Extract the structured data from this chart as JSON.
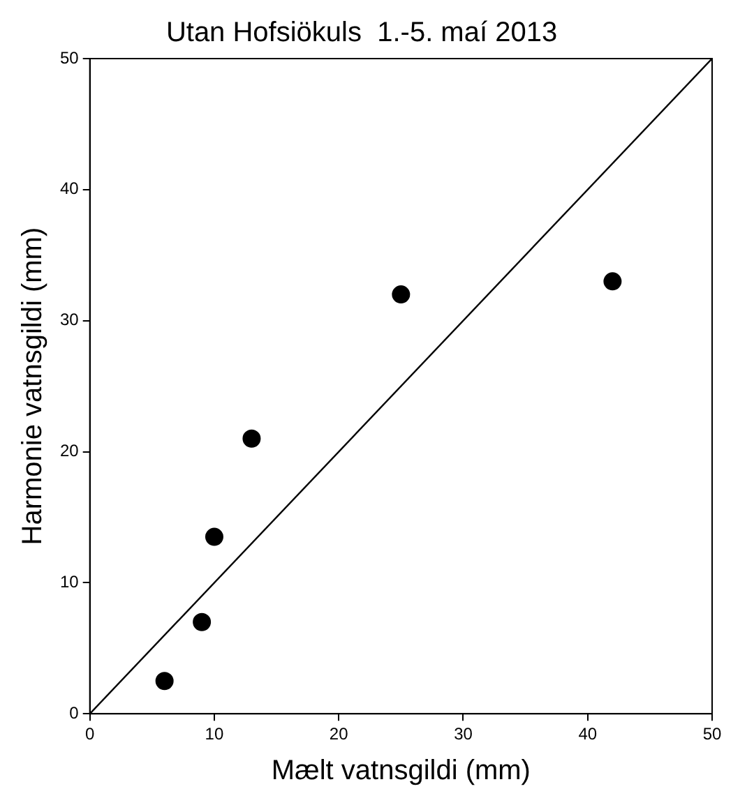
{
  "chart_data": {
    "type": "scatter",
    "title": "Utan Hofsiökuls  1.-5. maí 2013",
    "xlabel": "Mælt vatnsgildi (mm)",
    "ylabel": "Harmonie vatnsgildi (mm)",
    "xlim": [
      0,
      50
    ],
    "ylim": [
      0,
      50
    ],
    "xticks": [
      0,
      10,
      20,
      30,
      40,
      50
    ],
    "yticks": [
      0,
      10,
      20,
      30,
      40,
      50
    ],
    "grid": false,
    "legend": false,
    "marker": "circle",
    "series": [
      {
        "type": "scatter",
        "color": "#000000",
        "x": [
          6,
          9,
          10,
          13,
          25,
          42
        ],
        "values": [
          2.5,
          7,
          13.5,
          21,
          32,
          33
        ]
      },
      {
        "type": "line",
        "color": "#000000",
        "x": [
          0,
          50
        ],
        "values": [
          0,
          50
        ],
        "marker": "none",
        "line_style": "solid"
      }
    ]
  }
}
